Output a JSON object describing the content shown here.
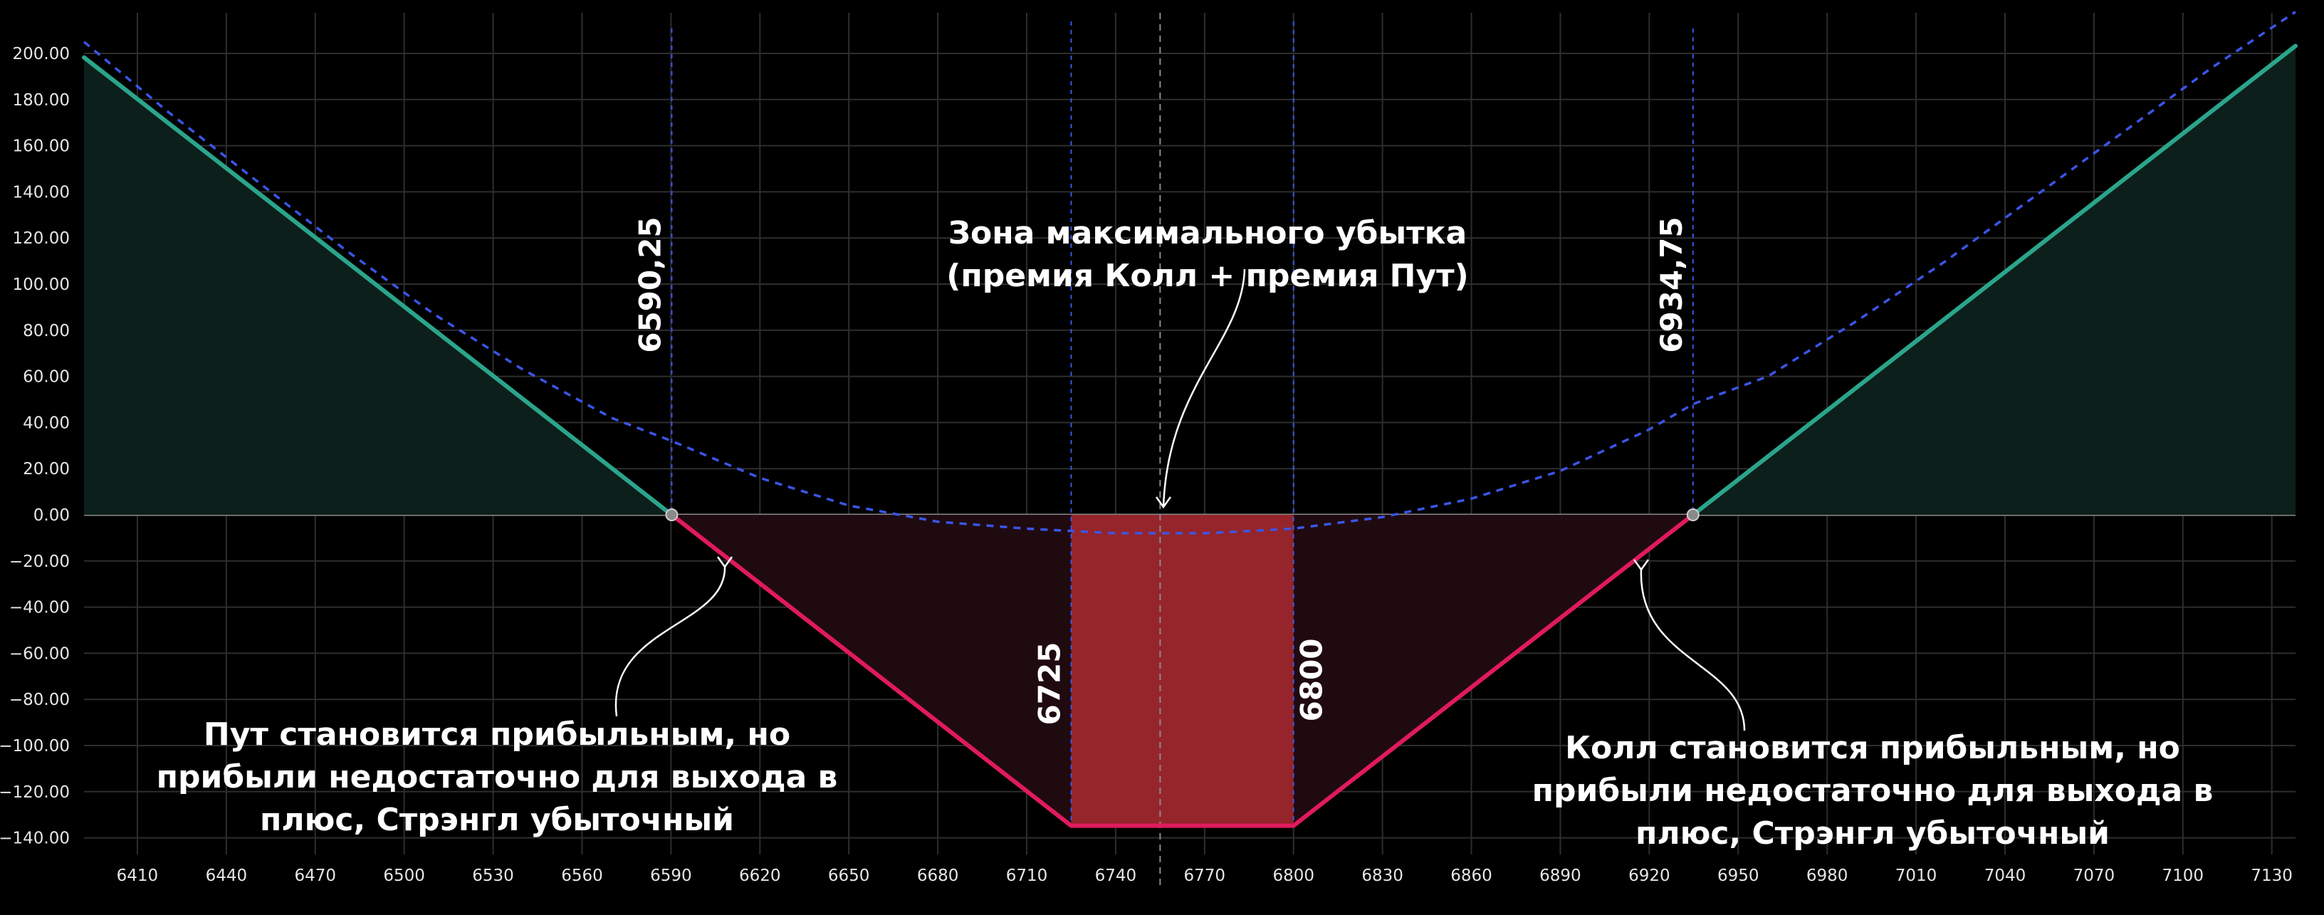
{
  "chart_data": {
    "type": "line",
    "title": "",
    "xlabel": "",
    "ylabel": "",
    "xlim": [
      6392,
      7138
    ],
    "ylim": [
      -140,
      200
    ],
    "grid": true,
    "x_ticks": [
      6410,
      6440,
      6470,
      6500,
      6530,
      6560,
      6590,
      6620,
      6650,
      6680,
      6710,
      6740,
      6770,
      6800,
      6830,
      6860,
      6890,
      6920,
      6950,
      6980,
      7010,
      7040,
      7070,
      7100,
      7130
    ],
    "y_ticks": [
      200,
      180,
      160,
      140,
      120,
      100,
      80,
      60,
      40,
      20,
      0,
      -20,
      -40,
      -60,
      -80,
      -100,
      -120,
      -140
    ],
    "y_tick_labels": [
      "200.00",
      "180.00",
      "160.00",
      "140.00",
      "120.00",
      "100.00",
      "80.00",
      "60.00",
      "40.00",
      "20.00",
      "0.00",
      "−20.00",
      "−40.00",
      "−60.00",
      "−80.00",
      "−100.00",
      "−120.00",
      "−140.00"
    ],
    "series": [
      {
        "type": "line",
        "style": "solid",
        "color_positive": "#2aa58c",
        "color_negative": "#e01a5c",
        "x": [
          6392,
          6590.25,
          6725,
          6800,
          6934.75,
          7138
        ],
        "y": [
          198.25,
          0,
          -134.75,
          -134.75,
          0,
          203.25
        ]
      },
      {
        "type": "line",
        "style": "dashed",
        "color": "#3b55e6",
        "x": [
          6392,
          6420,
          6450,
          6480,
          6510,
          6540,
          6570,
          6590.25,
          6620,
          6650,
          6680,
          6710,
          6725,
          6740,
          6755,
          6770,
          6785,
          6800,
          6830,
          6860,
          6890,
          6920,
          6934.75,
          6960,
          6990,
          7020,
          7050,
          7080,
          7110,
          7138
        ],
        "y": [
          205,
          175,
          145,
          115,
          87,
          63,
          42,
          32,
          16,
          4,
          -3,
          -6,
          -7,
          -8,
          -8,
          -8,
          -7,
          -6,
          -1,
          7,
          19,
          37,
          48,
          60,
          84,
          110,
          138,
          166,
          194,
          218
        ]
      }
    ],
    "vertical_lines": [
      {
        "x": 6590.25,
        "label": "6590,25"
      },
      {
        "x": 6725,
        "label": "6725"
      },
      {
        "x": 6755,
        "label": ""
      },
      {
        "x": 6800,
        "label": "6800"
      },
      {
        "x": 6934.75,
        "label": "6934,75"
      }
    ],
    "breakeven_points": [
      6590.25,
      6934.75
    ],
    "max_loss_zone": {
      "x": [
        6725,
        6800
      ],
      "y": [
        -134.75,
        0
      ]
    },
    "annotations": [
      {
        "lines": [
          "Зона максимального убытка",
          "(премия Колл + премия Пут)"
        ]
      },
      {
        "lines": [
          "Пут становится прибыльным, но",
          "прибыли недостаточно для выхода в",
          "плюс, Стрэнгл убыточный"
        ]
      },
      {
        "lines": [
          "Колл становится прибыльным, но",
          "прибыли недостаточно для выхода в",
          "плюс, Стрэнгл убыточный"
        ]
      }
    ],
    "colors": {
      "background": "#000000",
      "grid": "#2e2e2e",
      "profit_line": "#2aa58c",
      "loss_line": "#e01a5c",
      "profit_fill": "#0d1f1a",
      "loss_fill": "#1f0a10",
      "zone_fill": "#a0282e",
      "vline": "#3b55e6",
      "dashed_curve": "#3b55e6"
    }
  }
}
